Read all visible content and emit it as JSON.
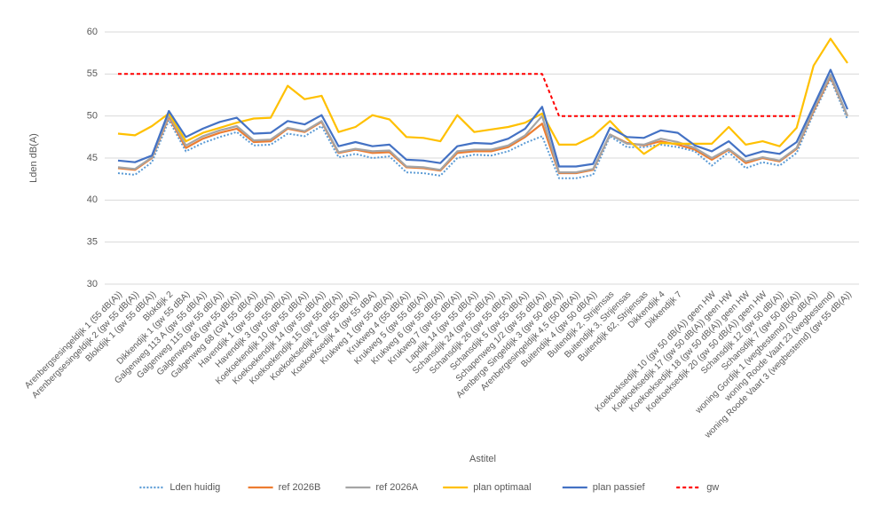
{
  "chart_data": {
    "type": "line",
    "y_label": "Lden dB(A)",
    "x_label": "Astitel",
    "categories": [
      "Arenbergsesingeldijk 1 (55 dB(A))",
      "Arenbergsesingeldijk 2 (gw 55 dB(A))",
      "Blokdijk 1 (gw 55 dB(A))",
      "Blokdijk 2",
      "Dikkendijk 1 (gw 55 dBA)",
      "Galgenweg 113 A (gw 55 dB(A))",
      "Galgenweg 115 (gw 55 dB(A))",
      "Galgenweg 66 (gw 55 dB(A))",
      "Galgenweg 68 (GW 55 dB(A))",
      "Havendijk 1 (gw 55 dB(A))",
      "Havendijk 3 (gw 55 dB(A))",
      "Koekoekendijk 10 (gw 55 dB(A))",
      "Koekoekendijk 14 (gw 55 dB(A))",
      "Koekoekendijk 15 (gw 55 dB(A))",
      "Koekoeksedijk 2 (gw 55 dB(A))",
      "Koekoeksedijk 4 (gw 55 dBA)",
      "Krukweg 1 (gw 55 dB(A))",
      "Krukweg 4 (55 dB(A))",
      "Krukweg 5 (gw 55 dB(A))",
      "Krukweg 6 (gw 55 dB(A))",
      "Krukweg 7 (gw 55 dB(A))",
      "Lapdijk 14 (gw 55 dB(A))",
      "Schansdijk 24 (gw 55 dB(A))",
      "Schansdijk 26 (gw 55 dB(A))",
      "Schansdijk 5 (gw 55 dB(A))",
      "Schapenweg 1/2 (gw 55 dB(A))",
      "Arenberge Singeldijk 3 (gw 50 dB(A))",
      "Arenbergesingeldijk 4,5 (50 dB(A))",
      "Buitendijk 4 (gw 50 dB(A))",
      "Buitendijk 2, Strijensas",
      "Buitendijk 3, Strijensas",
      "Buitendijk 62, Strijensas",
      "Dikkendijk 4",
      "Dikkendijk 7",
      null,
      "Koekoeksedijk 10 (gw 50 dB(A)) geen HW",
      "Koekoeksedijk 17 (gw 50 dB(A)) geen HW",
      "Koekoeksedijk 18 (gw 50 dB(A)) geen HW",
      "Koekoeksedijk 20 (gw 50 dB(A)) geen HW",
      "Schansdijk 12 (gw 50 dB(A))",
      "Schansdijk 7 (gw 50 dB(A))",
      "woning Gordijk 1 (wegbestemd) (50 dB(A))",
      "woning Roode Vaart 23 (wegbestemd)",
      "woning Roode Vaart 3 (wegbestemd) (gw 55 dB(A))"
    ],
    "series": [
      {
        "name": "Lden huidig",
        "color": "#5b9bd5",
        "style": "dotted",
        "values": [
          43.2,
          43.0,
          44.5,
          49.5,
          45.8,
          46.8,
          47.5,
          48.1,
          46.5,
          46.6,
          47.9,
          47.6,
          48.8,
          45.1,
          45.5,
          45.0,
          45.2,
          43.3,
          43.2,
          42.9,
          45.0,
          45.4,
          45.3,
          45.8,
          46.8,
          47.6,
          42.6,
          42.6,
          43.0,
          47.6,
          46.3,
          46.3,
          46.6,
          46.3,
          45.8,
          44.1,
          45.7,
          43.8,
          44.5,
          44.1,
          45.6,
          50.3,
          54.4,
          49.6
        ]
      },
      {
        "name": "ref 2026B",
        "color": "#ed7d31",
        "style": "solid",
        "values": [
          43.8,
          43.6,
          45.0,
          49.9,
          46.2,
          47.3,
          48.0,
          48.5,
          46.9,
          47.0,
          48.5,
          48.1,
          49.3,
          45.6,
          46.0,
          45.6,
          45.7,
          43.9,
          43.8,
          43.5,
          45.6,
          45.8,
          45.8,
          46.3,
          47.5,
          49.1,
          43.2,
          43.2,
          43.6,
          47.8,
          46.8,
          46.5,
          47.0,
          46.6,
          46.0,
          44.8,
          46.0,
          44.4,
          45.0,
          44.6,
          46.1,
          50.6,
          54.7,
          50.0
        ]
      },
      {
        "name": "ref 2026A",
        "color": "#a5a5a5",
        "style": "solid",
        "values": [
          43.9,
          43.7,
          45.1,
          50.1,
          46.5,
          47.6,
          48.3,
          48.8,
          47.1,
          47.2,
          48.6,
          48.2,
          49.4,
          45.7,
          46.1,
          45.8,
          45.9,
          44.0,
          43.9,
          43.6,
          45.8,
          46.0,
          46.0,
          46.5,
          47.7,
          50.0,
          43.3,
          43.3,
          43.7,
          47.8,
          46.7,
          46.6,
          47.3,
          46.9,
          46.2,
          45.0,
          46.1,
          44.6,
          45.1,
          44.7,
          46.2,
          50.8,
          54.9,
          50.0
        ]
      },
      {
        "name": "plan optimaal",
        "color": "#ffc000",
        "style": "solid",
        "values": [
          47.9,
          47.7,
          48.8,
          50.3,
          47.0,
          48.0,
          48.6,
          49.2,
          49.7,
          49.8,
          53.6,
          52.0,
          52.4,
          48.1,
          48.7,
          50.1,
          49.6,
          47.5,
          47.4,
          47.0,
          50.1,
          48.1,
          48.4,
          48.7,
          49.2,
          50.3,
          46.6,
          46.6,
          47.6,
          49.4,
          47.3,
          45.5,
          46.8,
          46.7,
          46.7,
          46.7,
          48.7,
          46.6,
          47.0,
          46.4,
          48.6,
          56.0,
          59.2,
          56.3
        ]
      },
      {
        "name": "plan passief",
        "color": "#4472c4",
        "style": "solid",
        "values": [
          44.7,
          44.5,
          45.3,
          50.6,
          47.5,
          48.5,
          49.3,
          49.8,
          47.9,
          48.0,
          49.4,
          49.0,
          50.1,
          46.4,
          46.9,
          46.4,
          46.6,
          44.8,
          44.7,
          44.4,
          46.4,
          46.8,
          46.7,
          47.3,
          48.5,
          51.1,
          44.0,
          44.0,
          44.3,
          48.6,
          47.5,
          47.4,
          48.3,
          48.0,
          46.5,
          45.8,
          47.0,
          45.2,
          45.8,
          45.5,
          46.9,
          51.2,
          55.5,
          50.8
        ]
      },
      {
        "name": "gw",
        "color": "#ff0000",
        "style": "dashed",
        "values": [
          55,
          55,
          55,
          55,
          55,
          55,
          55,
          55,
          55,
          55,
          55,
          55,
          55,
          55,
          55,
          55,
          55,
          55,
          55,
          55,
          55,
          55,
          55,
          55,
          55,
          55,
          50,
          50,
          50,
          50,
          50,
          50,
          50,
          50,
          50,
          50,
          50,
          50,
          50,
          50,
          50,
          null,
          null,
          null
        ]
      }
    ],
    "ylim": [
      30,
      60
    ],
    "yticks": [
      30,
      35,
      40,
      45,
      50,
      55,
      60
    ],
    "grid": true,
    "legend": "bottom"
  }
}
